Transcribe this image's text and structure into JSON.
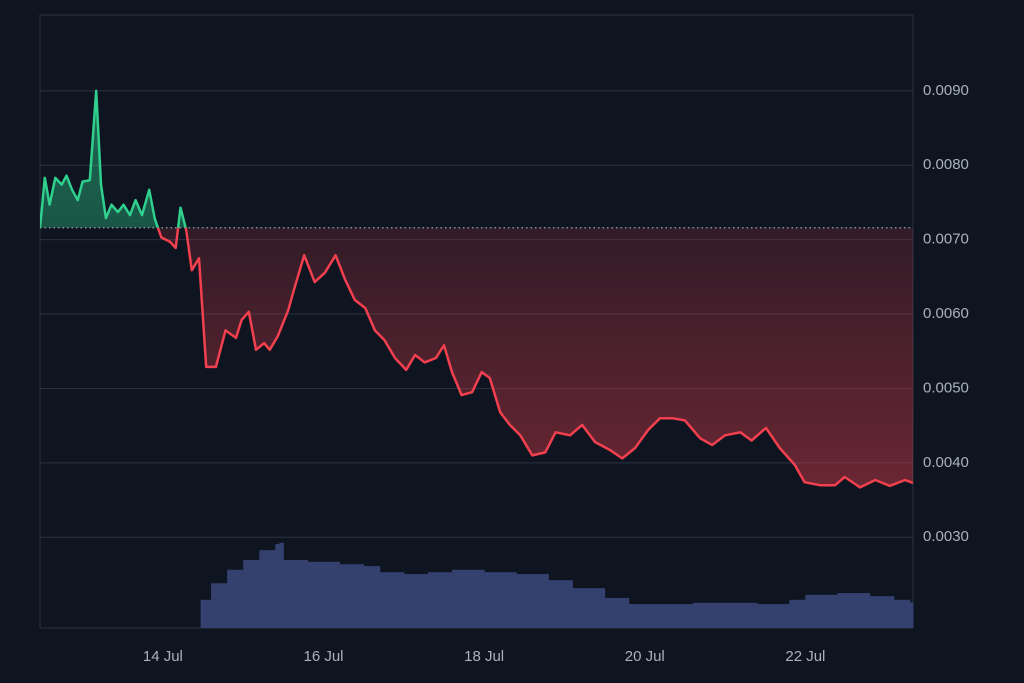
{
  "chart_data": {
    "type": "baseline-line",
    "baseline": 0.00716,
    "up_color": "#2fd08e",
    "down_color": "#f2404f",
    "xlim": [
      12.47,
      23.34
    ],
    "xticks": [
      {
        "value": 14,
        "label": "14 Jul"
      },
      {
        "value": 16,
        "label": "16 Jul"
      },
      {
        "value": 18,
        "label": "18 Jul"
      },
      {
        "value": 20,
        "label": "20 Jul"
      },
      {
        "value": 22,
        "label": "22 Jul"
      }
    ],
    "ylim": [
      0.00178,
      0.01002
    ],
    "yticks": [
      {
        "value": 0.003,
        "label": "0.0030"
      },
      {
        "value": 0.004,
        "label": "0.0040"
      },
      {
        "value": 0.005,
        "label": "0.0050"
      },
      {
        "value": 0.006,
        "label": "0.0060"
      },
      {
        "value": 0.007,
        "label": "0.0070"
      },
      {
        "value": 0.008,
        "label": "0.0080"
      },
      {
        "value": 0.009,
        "label": "0.0090"
      }
    ],
    "y2lim": [
      0,
      100
    ],
    "grid": true,
    "series": [
      {
        "x": [
          12.47,
          12.53,
          12.59,
          12.66,
          12.74,
          12.8,
          12.87,
          12.94,
          13.0,
          13.09,
          13.17,
          13.23,
          13.29,
          13.36,
          13.44,
          13.51,
          13.59,
          13.66,
          13.74,
          13.83,
          13.9,
          13.98,
          14.09,
          14.16,
          14.22,
          14.29,
          14.36,
          14.45,
          14.54,
          14.66,
          14.78,
          14.91,
          14.98,
          15.07,
          15.16,
          15.26,
          15.33,
          15.43,
          15.56,
          15.63,
          15.76,
          15.89,
          16.02,
          16.15,
          16.27,
          16.39,
          16.52,
          16.64,
          16.76,
          16.89,
          17.03,
          17.14,
          17.26,
          17.4,
          17.5,
          17.6,
          17.72,
          17.85,
          17.97,
          18.07,
          18.2,
          18.32,
          18.45,
          18.6,
          18.76,
          18.89,
          19.07,
          19.22,
          19.38,
          19.57,
          19.72,
          19.88,
          20.04,
          20.19,
          20.34,
          20.5,
          20.69,
          20.84,
          21.0,
          21.19,
          21.33,
          21.51,
          21.68,
          21.87,
          21.99,
          22.18,
          22.37,
          22.49,
          22.68,
          22.87,
          23.05,
          23.24,
          23.34
        ],
        "values": [
          0.00716,
          0.00783,
          0.00747,
          0.00783,
          0.00774,
          0.00786,
          0.00767,
          0.00753,
          0.00778,
          0.0078,
          0.009,
          0.00774,
          0.00729,
          0.00747,
          0.00737,
          0.00747,
          0.00733,
          0.00753,
          0.00733,
          0.00767,
          0.00728,
          0.00703,
          0.00697,
          0.00689,
          0.00743,
          0.00713,
          0.00659,
          0.00675,
          0.00529,
          0.00529,
          0.00578,
          0.00568,
          0.00592,
          0.00603,
          0.00552,
          0.00561,
          0.00552,
          0.0057,
          0.00605,
          0.00632,
          0.00679,
          0.00643,
          0.00656,
          0.00679,
          0.00646,
          0.00619,
          0.00608,
          0.00578,
          0.00565,
          0.00541,
          0.00525,
          0.00545,
          0.00535,
          0.00541,
          0.00558,
          0.00522,
          0.00491,
          0.00495,
          0.00522,
          0.00514,
          0.00468,
          0.00451,
          0.00437,
          0.0041,
          0.00414,
          0.00441,
          0.00437,
          0.00451,
          0.00428,
          0.00417,
          0.00406,
          0.0042,
          0.00444,
          0.0046,
          0.0046,
          0.00457,
          0.00433,
          0.00424,
          0.00437,
          0.00441,
          0.0043,
          0.00447,
          0.0042,
          0.00397,
          0.00374,
          0.0037,
          0.0037,
          0.00381,
          0.00367,
          0.00377,
          0.00369,
          0.00377,
          0.00373
        ]
      },
      {
        "type": "volume",
        "axis": "y2",
        "color": "#34406e",
        "x": [
          14.47,
          14.6,
          14.8,
          15.0,
          15.2,
          15.4,
          15.45,
          15.5,
          15.8,
          16.2,
          16.5,
          16.7,
          17.0,
          17.3,
          17.6,
          18.0,
          18.4,
          18.8,
          19.1,
          19.5,
          19.8,
          20.2,
          20.6,
          21.0,
          21.4,
          21.8,
          22.0,
          22.4,
          22.8,
          23.1,
          23.3
        ],
        "values": [
          4.6,
          7.3,
          9.5,
          11.1,
          12.7,
          13.7,
          13.9,
          11.1,
          10.8,
          10.4,
          10.1,
          9.1,
          8.8,
          9.1,
          9.5,
          9.1,
          8.8,
          7.8,
          6.5,
          4.9,
          3.9,
          3.9,
          4.1,
          4.1,
          3.9,
          4.6,
          5.4,
          5.7,
          5.2,
          4.6,
          4.2
        ]
      }
    ]
  }
}
